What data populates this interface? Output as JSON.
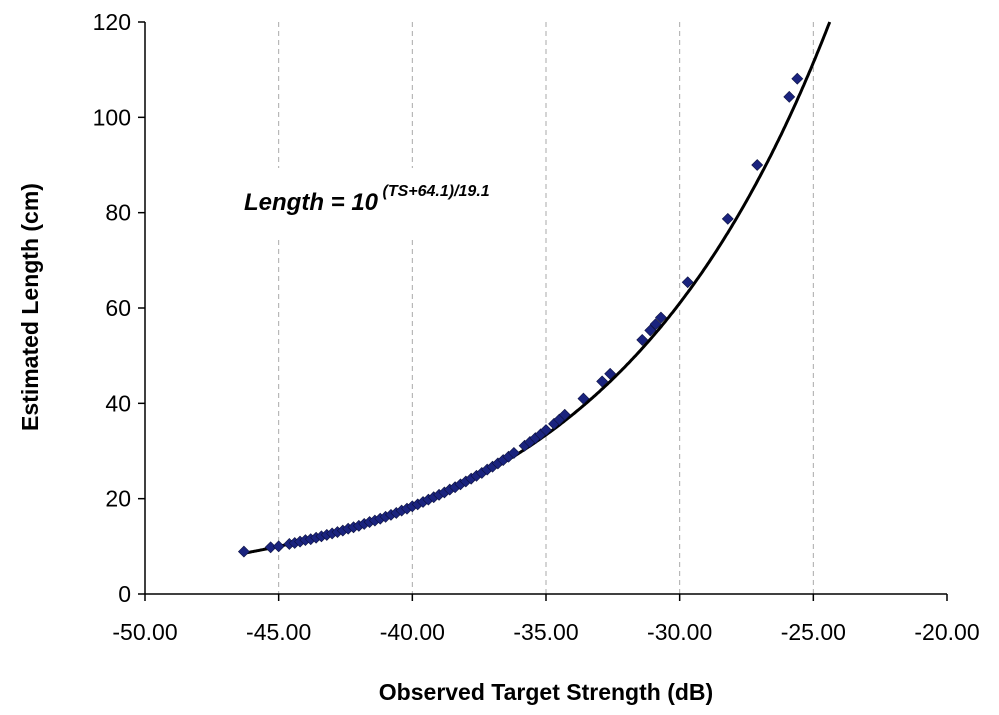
{
  "chart_data": {
    "type": "scatter",
    "xlabel": "Observed Target Strength (dB)",
    "ylabel": "Estimated Length (cm)",
    "xlim": [
      -50,
      -20
    ],
    "ylim": [
      0,
      120
    ],
    "x_ticks": [
      "-50.00",
      "-45.00",
      "-40.00",
      "-35.00",
      "-30.00",
      "-25.00",
      "-20.00"
    ],
    "y_ticks": [
      "0",
      "20",
      "40",
      "60",
      "80",
      "100",
      "120"
    ],
    "grid": "vertical dashed",
    "annotation": {
      "prefix": "Length = 10",
      "exponent": "(TS+64.1)/19.1"
    },
    "fit": {
      "a": 64.1,
      "b": 19.1,
      "x_start": -46.3
    },
    "marker_color": "#1a237e",
    "line_color": "#000000",
    "series": [
      {
        "x": [
          -46.3,
          -45.3,
          -45.0,
          -44.6,
          -44.4,
          -44.2,
          -44.0,
          -43.8,
          -43.6,
          -43.4,
          -43.2,
          -43.0,
          -42.8,
          -42.6,
          -42.4,
          -42.2,
          -42.0,
          -41.8,
          -41.6,
          -41.4,
          -41.2,
          -41.0,
          -40.8,
          -40.6,
          -40.4,
          -40.2,
          -40.0,
          -39.8,
          -39.6,
          -39.4,
          -39.2,
          -39.0,
          -38.8,
          -38.6,
          -38.4,
          -38.2,
          -38.0,
          -37.8,
          -37.6,
          -37.4,
          -37.2,
          -37.0,
          -36.8,
          -36.6,
          -36.4,
          -36.2,
          -35.8,
          -35.6,
          -35.4,
          -35.2,
          -35.0,
          -34.7,
          -34.5,
          -34.3,
          -33.6,
          -32.9,
          -32.6,
          -31.4,
          -31.1,
          -30.9,
          -30.7,
          -29.7,
          -28.2,
          -27.1,
          -25.9,
          -25.6
        ],
        "y": [
          8.9,
          9.8,
          10.0,
          10.5,
          10.7,
          11.0,
          11.3,
          11.5,
          11.8,
          12.1,
          12.4,
          12.7,
          13.0,
          13.3,
          13.7,
          14.0,
          14.3,
          14.7,
          15.1,
          15.4,
          15.8,
          16.2,
          16.6,
          17.0,
          17.5,
          17.9,
          18.4,
          18.8,
          19.3,
          19.8,
          20.3,
          20.8,
          21.3,
          21.9,
          22.4,
          23.0,
          23.6,
          24.2,
          24.8,
          25.4,
          26.1,
          26.7,
          27.4,
          28.1,
          28.8,
          29.6,
          31.1,
          31.9,
          32.7,
          33.5,
          34.4,
          35.7,
          36.6,
          37.6,
          41.0,
          44.6,
          46.2,
          53.3,
          55.3,
          56.6,
          58.0,
          65.4,
          78.7,
          90.0,
          104.3,
          108.1
        ]
      }
    ]
  }
}
